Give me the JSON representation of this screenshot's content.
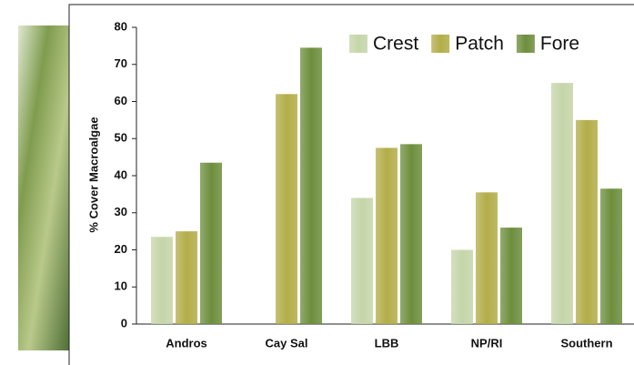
{
  "chart_data": {
    "type": "bar",
    "y_label": "% Cover Macroalgae",
    "categories": [
      "Andros",
      "Cay Sal",
      "LBB",
      "NP/RI",
      "Southern"
    ],
    "series": [
      {
        "name": "Crest",
        "color": "#c5d5a9",
        "values": [
          23.5,
          null,
          34,
          20,
          65
        ]
      },
      {
        "name": "Patch",
        "color": "#b3ad48",
        "values": [
          25,
          62,
          47.5,
          35.5,
          55
        ]
      },
      {
        "name": "Fore",
        "color": "#6d8e3d",
        "values": [
          43.5,
          74.5,
          48.5,
          26,
          36.5
        ]
      }
    ],
    "ylim": [
      0,
      80
    ],
    "yticks": [
      0,
      10,
      20,
      30,
      40,
      50,
      60,
      70,
      80
    ],
    "grid": false,
    "legend": "top-right"
  }
}
